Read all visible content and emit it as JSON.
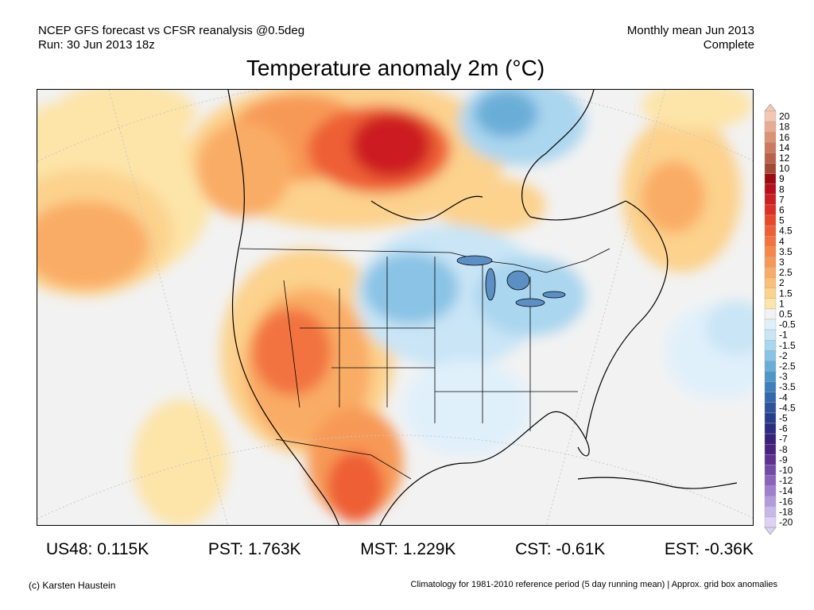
{
  "header": {
    "line1": "NCEP GFS forecast vs CFSR reanalysis @0.5deg",
    "line2": "Run: 30 Jun 2013 18z",
    "right1": "Monthly mean Jun 2013",
    "right2": "Complete"
  },
  "title": "Temperature anomaly 2m (°C)",
  "stats": [
    {
      "label": "US48: 0.115K"
    },
    {
      "label": "PST: 1.763K"
    },
    {
      "label": "MST: 1.229K"
    },
    {
      "label": "CST: -0.61K"
    },
    {
      "label": "EST: -0.36K"
    }
  ],
  "footer": {
    "left": "(c) Karsten Haustein",
    "right": "Climatology for 1981-2010 reference period (5 day running mean) | Approx. grid box anomalies"
  },
  "legend": {
    "bins": [
      {
        "label": "20",
        "color": "#f3c7b3"
      },
      {
        "label": "18",
        "color": "#e8ab93"
      },
      {
        "label": "16",
        "color": "#db9277"
      },
      {
        "label": "14",
        "color": "#cc7a5f"
      },
      {
        "label": "12",
        "color": "#b96249"
      },
      {
        "label": "10",
        "color": "#a44936"
      },
      {
        "label": "9",
        "color": "#9e0a12"
      },
      {
        "label": "8",
        "color": "#b8101a"
      },
      {
        "label": "7",
        "color": "#cc1f22"
      },
      {
        "label": "6",
        "color": "#dc3026"
      },
      {
        "label": "5",
        "color": "#e8492b"
      },
      {
        "label": "4.5",
        "color": "#ee5f34"
      },
      {
        "label": "4",
        "color": "#f27340"
      },
      {
        "label": "3.5",
        "color": "#f5874a"
      },
      {
        "label": "3",
        "color": "#f79956"
      },
      {
        "label": "2.5",
        "color": "#f9ac65"
      },
      {
        "label": "2",
        "color": "#fbbf78"
      },
      {
        "label": "1.5",
        "color": "#fcd28d"
      },
      {
        "label": "1",
        "color": "#fde4a8"
      },
      {
        "label": "0.5",
        "color": "#f2f2f2"
      },
      {
        "label": "-0.5",
        "color": "#e0f0fb"
      },
      {
        "label": "-1",
        "color": "#c9e5f6"
      },
      {
        "label": "-1.5",
        "color": "#aad6ef"
      },
      {
        "label": "-2",
        "color": "#8ac3e5"
      },
      {
        "label": "-2.5",
        "color": "#6aaed8"
      },
      {
        "label": "-3",
        "color": "#4f96c9"
      },
      {
        "label": "-3.5",
        "color": "#3f7fbb"
      },
      {
        "label": "-4",
        "color": "#3468ac"
      },
      {
        "label": "-4.5",
        "color": "#2c539c"
      },
      {
        "label": "-5",
        "color": "#263f8d"
      },
      {
        "label": "-6",
        "color": "#2b2d7e"
      },
      {
        "label": "-7",
        "color": "#37217a"
      },
      {
        "label": "-8",
        "color": "#4a2382"
      },
      {
        "label": "-9",
        "color": "#5e3192"
      },
      {
        "label": "-10",
        "color": "#7449a8"
      },
      {
        "label": "-12",
        "color": "#8a63bd"
      },
      {
        "label": "-14",
        "color": "#9f7fcf"
      },
      {
        "label": "-16",
        "color": "#b39cdd"
      },
      {
        "label": "-18",
        "color": "#c7b8ea"
      },
      {
        "label": "-20",
        "color": "#dcd2f4"
      }
    ]
  }
}
